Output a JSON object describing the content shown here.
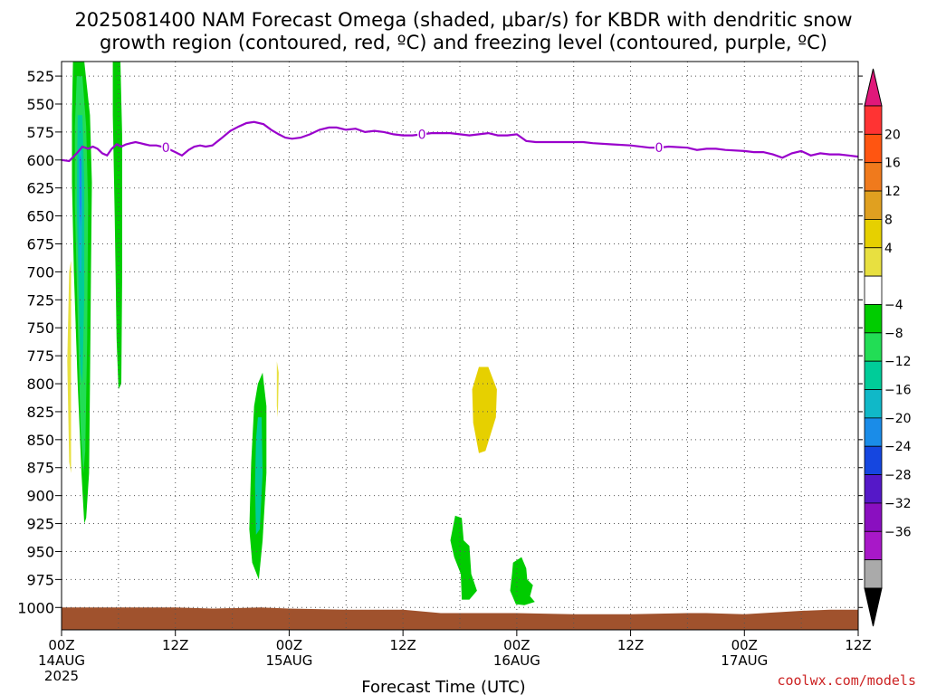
{
  "chart_data": {
    "type": "heatmap",
    "title_lines": [
      "2025081400 NAM Forecast Omega (shaded, μbar/s) for KBDR with dendritic snow",
      "growth region (contoured, red, ºC) and freezing level (contoured, purple, ºC)"
    ],
    "xlabel": "Forecast Time (UTC)",
    "credit": "coolwx.com/models",
    "x_ticks": [
      {
        "hour": 0,
        "line1": "00Z",
        "line2": "14AUG",
        "line3": "2025"
      },
      {
        "hour": 12,
        "line1": "12Z",
        "line2": "",
        "line3": ""
      },
      {
        "hour": 24,
        "line1": "00Z",
        "line2": "15AUG",
        "line3": ""
      },
      {
        "hour": 36,
        "line1": "12Z",
        "line2": "",
        "line3": ""
      },
      {
        "hour": 48,
        "line1": "00Z",
        "line2": "16AUG",
        "line3": ""
      },
      {
        "hour": 60,
        "line1": "12Z",
        "line2": "",
        "line3": ""
      },
      {
        "hour": 72,
        "line1": "00Z",
        "line2": "17AUG",
        "line3": ""
      },
      {
        "hour": 84,
        "line1": "12Z",
        "line2": "",
        "line3": ""
      }
    ],
    "x_range_hours": [
      0,
      84
    ],
    "y_ticks_hpa": [
      525,
      550,
      575,
      600,
      625,
      650,
      675,
      700,
      725,
      750,
      775,
      800,
      825,
      850,
      875,
      900,
      925,
      950,
      975,
      1000
    ],
    "y_range_hpa": [
      512,
      1020
    ],
    "grid": true,
    "colorbar": {
      "labels": [
        "20",
        "16",
        "12",
        "8",
        "4",
        "−4",
        "−8",
        "−12",
        "−16",
        "−20",
        "−24",
        "−28",
        "−32",
        "−36"
      ],
      "colors": [
        "#ff3333",
        "#ff5511",
        "#f07a1c",
        "#e0a020",
        "#e6d000",
        "#e8e040",
        "#ffffff",
        "#00cc00",
        "#22dd55",
        "#00cc99",
        "#10b8c8",
        "#1a8ce8",
        "#1546e0",
        "#5518c8",
        "#8a0fc0",
        "#a818c8",
        "#aaaaaa"
      ],
      "top_arrow_color": "#e0187a",
      "bottom_arrow_color": "#000000"
    },
    "freezing_level": {
      "label": "0",
      "color": "#9900cc",
      "label_hours": [
        11,
        38,
        63
      ],
      "hours": [
        0,
        0.8,
        1.6,
        2.2,
        2.8,
        3.3,
        3.8,
        4.3,
        4.8,
        5.3,
        5.8,
        6.3,
        6.8,
        7.3,
        7.8,
        8.3,
        8.8,
        9.3,
        10,
        11,
        12,
        12.7,
        13.4,
        14,
        14.6,
        15.2,
        15.9,
        16.8,
        17.8,
        18.7,
        19.5,
        20.3,
        21.3,
        22.1,
        22.9,
        23.6,
        24.3,
        25.2,
        26.2,
        27.2,
        28.2,
        29,
        30,
        31,
        32,
        33,
        34,
        35,
        36,
        37,
        38,
        39,
        40,
        41,
        42,
        43,
        44,
        45,
        46,
        47,
        48,
        49,
        50,
        51,
        53,
        55,
        56,
        58,
        60,
        62,
        63,
        64,
        66,
        67,
        68,
        69,
        70,
        72,
        73,
        74,
        75,
        76,
        77,
        78,
        79,
        80,
        81,
        82,
        83,
        84
      ],
      "hpa": [
        600,
        601,
        594,
        588,
        590,
        588,
        590,
        594,
        596,
        590,
        586,
        588,
        586,
        585,
        584,
        585,
        586,
        587,
        587,
        589,
        593,
        596,
        591,
        588,
        587,
        588,
        587,
        581,
        574,
        570,
        567,
        566,
        568,
        573,
        577,
        580,
        581,
        580,
        577,
        573,
        571,
        571,
        573,
        572,
        575,
        574,
        575,
        577,
        578,
        578,
        577,
        576,
        576,
        576,
        577,
        578,
        577,
        576,
        578,
        578,
        577,
        583,
        584,
        584,
        584,
        584,
        585,
        586,
        587,
        589,
        589,
        588,
        589,
        591,
        590,
        590,
        591,
        592,
        593,
        593,
        595,
        598,
        594,
        592,
        596,
        594,
        595,
        595,
        596,
        597
      ]
    },
    "omega_regions": [
      {
        "name": "omega-band-hour2-outer",
        "color": "#00cc00",
        "points": [
          [
            1.2,
            512
          ],
          [
            2.4,
            512
          ],
          [
            3,
            560
          ],
          [
            3.2,
            620
          ],
          [
            3.1,
            700
          ],
          [
            3,
            800
          ],
          [
            2.9,
            880
          ],
          [
            2.6,
            920
          ],
          [
            2.4,
            925
          ],
          [
            2.1,
            880
          ],
          [
            1.7,
            800
          ],
          [
            1.3,
            700
          ],
          [
            1.1,
            620
          ],
          [
            1.1,
            560
          ]
        ]
      },
      {
        "name": "omega-band-hour2-mid",
        "color": "#22dd55",
        "points": [
          [
            1.6,
            525
          ],
          [
            2.2,
            525
          ],
          [
            2.6,
            570
          ],
          [
            2.8,
            640
          ],
          [
            2.7,
            760
          ],
          [
            2.5,
            860
          ],
          [
            2.3,
            880
          ],
          [
            2.0,
            840
          ],
          [
            1.7,
            740
          ],
          [
            1.4,
            640
          ],
          [
            1.4,
            570
          ]
        ]
      },
      {
        "name": "omega-band-hour2-inner",
        "color": "#00cc99",
        "points": [
          [
            1.7,
            560
          ],
          [
            2.2,
            560
          ],
          [
            2.4,
            620
          ],
          [
            2.4,
            720
          ],
          [
            2.2,
            800
          ],
          [
            2.0,
            790
          ],
          [
            1.8,
            720
          ],
          [
            1.6,
            640
          ]
        ]
      },
      {
        "name": "omega-band-hour2-core",
        "color": "#10b8c8",
        "points": [
          [
            1.8,
            590
          ],
          [
            2.1,
            590
          ],
          [
            2.2,
            640
          ],
          [
            2.1,
            700
          ],
          [
            1.9,
            700
          ],
          [
            1.8,
            650
          ]
        ]
      },
      {
        "name": "omega-band-hour2-peak",
        "color": "#1a8ce8",
        "points": [
          [
            1.9,
            595
          ],
          [
            2.1,
            600
          ],
          [
            2.1,
            640
          ],
          [
            2.0,
            660
          ],
          [
            1.9,
            640
          ]
        ]
      },
      {
        "name": "omega-band-hour6",
        "color": "#00cc00",
        "points": [
          [
            5.4,
            512
          ],
          [
            6.2,
            512
          ],
          [
            6.4,
            580
          ],
          [
            6.4,
            700
          ],
          [
            6.3,
            800
          ],
          [
            6.0,
            805
          ],
          [
            5.8,
            760
          ],
          [
            5.6,
            650
          ],
          [
            5.4,
            560
          ]
        ]
      },
      {
        "name": "omega-weak-ascent-hour1",
        "color": "#e8e040",
        "points": [
          [
            0.8,
            700
          ],
          [
            1.0,
            690
          ],
          [
            1.0,
            800
          ],
          [
            1.0,
            880
          ],
          [
            0.8,
            870
          ],
          [
            0.6,
            780
          ]
        ]
      },
      {
        "name": "omega-band-hour20-outer",
        "color": "#00cc00",
        "points": [
          [
            20.7,
            800
          ],
          [
            21.2,
            790
          ],
          [
            21.6,
            820
          ],
          [
            21.6,
            880
          ],
          [
            21.2,
            940
          ],
          [
            20.8,
            975
          ],
          [
            20.1,
            960
          ],
          [
            19.8,
            930
          ],
          [
            20.0,
            870
          ],
          [
            20.3,
            820
          ]
        ]
      },
      {
        "name": "omega-band-hour20-inner",
        "color": "#00cc99",
        "points": [
          [
            20.7,
            830
          ],
          [
            21.1,
            830
          ],
          [
            21.2,
            880
          ],
          [
            20.9,
            930
          ],
          [
            20.5,
            935
          ],
          [
            20.4,
            890
          ],
          [
            20.5,
            850
          ]
        ]
      },
      {
        "name": "omega-sliver-hour23",
        "color": "#e8e040",
        "points": [
          [
            22.7,
            780
          ],
          [
            22.9,
            790
          ],
          [
            22.8,
            830
          ],
          [
            22.7,
            820
          ]
        ]
      },
      {
        "name": "omega-ascent-hour44",
        "color": "#e6d000",
        "points": [
          [
            44.0,
            785
          ],
          [
            45.0,
            785
          ],
          [
            45.9,
            805
          ],
          [
            45.8,
            830
          ],
          [
            44.7,
            860
          ],
          [
            44.0,
            862
          ],
          [
            43.4,
            835
          ],
          [
            43.3,
            805
          ]
        ]
      },
      {
        "name": "omega-band-hour42",
        "color": "#00cc00",
        "points": [
          [
            41.5,
            918
          ],
          [
            42.2,
            920
          ],
          [
            42.4,
            940
          ],
          [
            43.0,
            945
          ],
          [
            43.2,
            970
          ],
          [
            43.8,
            985
          ],
          [
            43.0,
            993
          ],
          [
            42.2,
            993
          ],
          [
            42.1,
            970
          ],
          [
            41.4,
            955
          ],
          [
            41.0,
            940
          ]
        ]
      },
      {
        "name": "omega-band-hour48",
        "color": "#00cc00",
        "points": [
          [
            47.6,
            960
          ],
          [
            48.5,
            955
          ],
          [
            49.0,
            965
          ],
          [
            49.1,
            975
          ],
          [
            49.7,
            980
          ],
          [
            49.4,
            990
          ],
          [
            49.9,
            995
          ],
          [
            48.8,
            998
          ],
          [
            47.9,
            997
          ],
          [
            47.3,
            985
          ],
          [
            47.5,
            970
          ]
        ]
      }
    ],
    "terrain": {
      "color": "#a0522d",
      "hours": [
        0,
        6,
        12,
        16,
        21,
        24,
        30,
        36,
        40,
        44,
        48,
        54,
        60,
        66,
        68,
        72,
        78,
        81,
        84
      ],
      "hpa": [
        1000,
        1000,
        1000,
        1001,
        1000,
        1001,
        1002,
        1002,
        1005,
        1005,
        1005,
        1006,
        1006,
        1005,
        1005,
        1006,
        1003,
        1002,
        1002
      ]
    }
  }
}
